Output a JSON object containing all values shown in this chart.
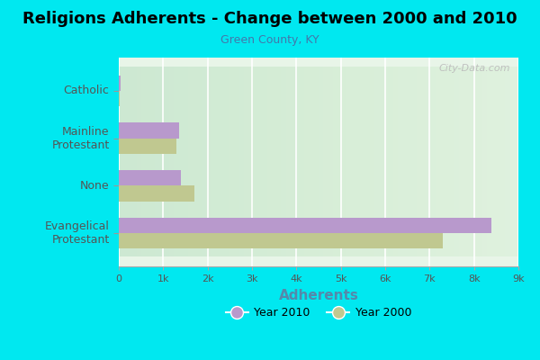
{
  "title": "Religions Adherents - Change between 2000 and 2010",
  "subtitle": "Green County, KY",
  "xlabel": "Adherents",
  "categories": [
    "Evangelical\nProtestant",
    "None",
    "Mainline\nProtestant",
    "Catholic"
  ],
  "year2010": [
    8400,
    1400,
    1350,
    50
  ],
  "year2000": [
    7300,
    1700,
    1300,
    30
  ],
  "color2010": "#b899cc",
  "color2000": "#c0c890",
  "bg_outer": "#00e8f0",
  "bg_plot_left": "#d8f0d8",
  "bg_plot_right": "#f5fff5",
  "xlim": [
    0,
    9000
  ],
  "xticks": [
    0,
    1000,
    2000,
    3000,
    4000,
    5000,
    6000,
    7000,
    8000,
    9000
  ],
  "xtick_labels": [
    "0",
    "1k",
    "2k",
    "3k",
    "4k",
    "5k",
    "6k",
    "7k",
    "8k",
    "9k"
  ],
  "legend_label_2010": "Year 2010",
  "legend_label_2000": "Year 2000",
  "watermark": "City-Data.com"
}
